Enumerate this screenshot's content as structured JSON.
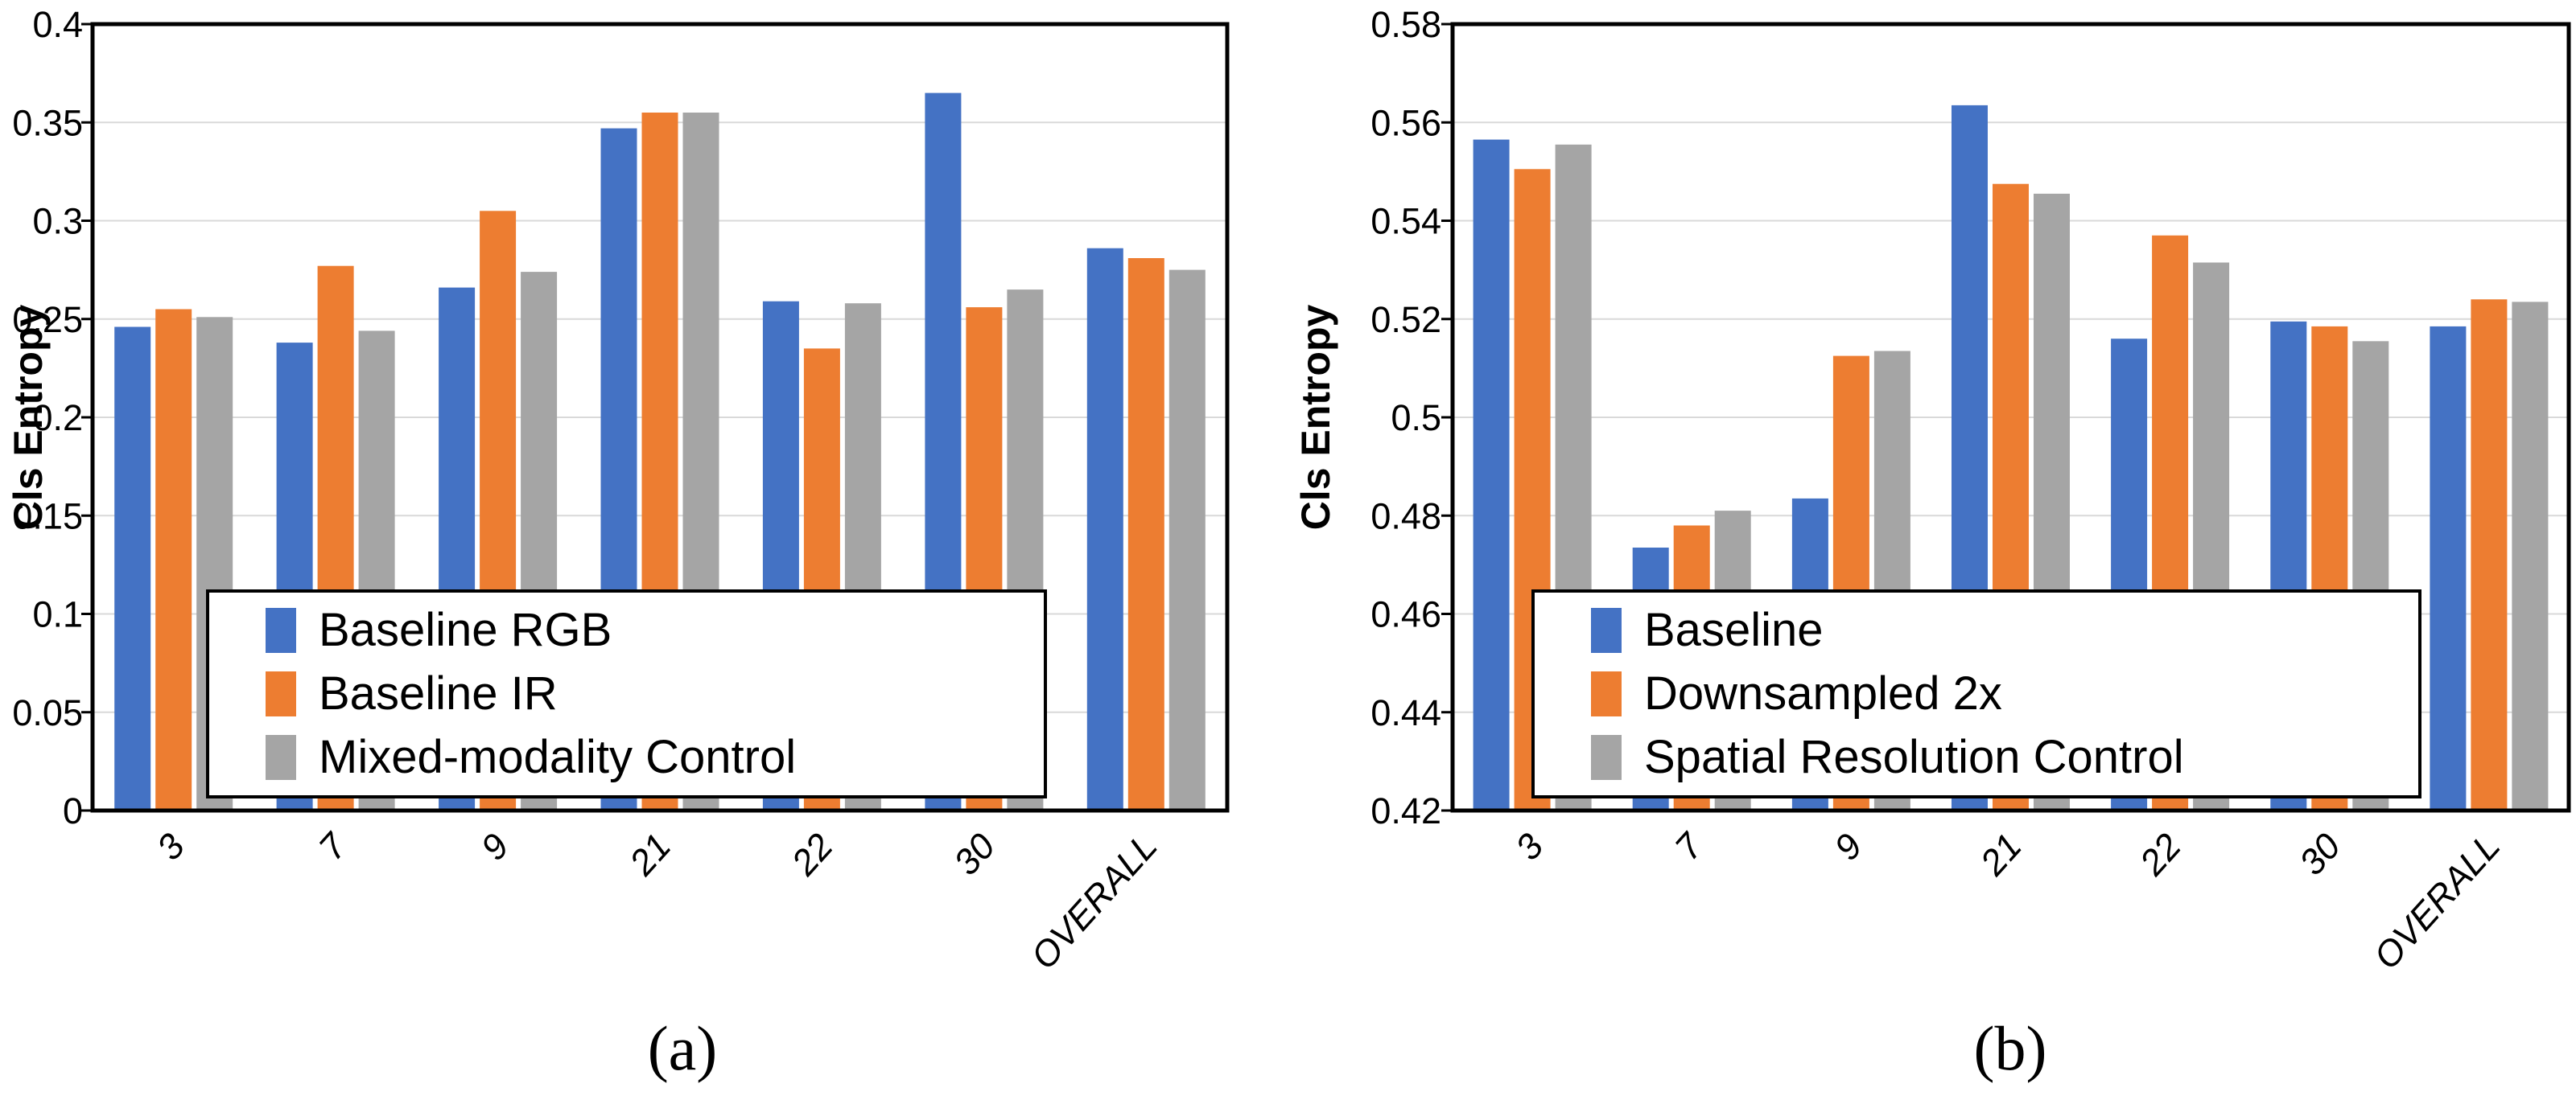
{
  "page": {
    "background": "#ffffff"
  },
  "colors": {
    "series_blue": "#4472C4",
    "series_orange": "#ED7D31",
    "series_gray": "#A5A5A5",
    "gridline": "#D9D9D9",
    "axis": "#000000",
    "text": "#000000"
  },
  "chart_data": [
    {
      "id": "a",
      "type": "bar",
      "caption": "(a)",
      "ylabel": "Cls Entropy",
      "xlabel": "",
      "categories": [
        "3",
        "7",
        "9",
        "21",
        "22",
        "30",
        "OVERALL"
      ],
      "ylim": [
        0,
        0.4
      ],
      "ytick_step": 0.05,
      "ytick_labels": [
        "0",
        "0.05",
        "0.1",
        "0.15",
        "0.2",
        "0.25",
        "0.3",
        "0.35",
        "0.4"
      ],
      "grid": true,
      "legend_position": "overlay-bottom-left",
      "series": [
        {
          "name": "Baseline RGB",
          "color_key": "series_blue",
          "values": [
            0.246,
            0.238,
            0.266,
            0.347,
            0.259,
            0.365,
            0.286
          ]
        },
        {
          "name": "Baseline IR",
          "color_key": "series_orange",
          "values": [
            0.255,
            0.277,
            0.305,
            0.355,
            0.235,
            0.256,
            0.281
          ]
        },
        {
          "name": "Mixed-modality Control",
          "color_key": "series_gray",
          "values": [
            0.251,
            0.244,
            0.274,
            0.355,
            0.258,
            0.265,
            0.275
          ]
        }
      ]
    },
    {
      "id": "b",
      "type": "bar",
      "caption": "(b)",
      "ylabel": "Cls Entropy",
      "xlabel": "",
      "categories": [
        "3",
        "7",
        "9",
        "21",
        "22",
        "30",
        "OVERALL"
      ],
      "ylim": [
        0.42,
        0.58
      ],
      "ytick_step": 0.02,
      "ytick_labels": [
        "0.42",
        "0.44",
        "0.46",
        "0.48",
        "0.5",
        "0.52",
        "0.54",
        "0.56",
        "0.58"
      ],
      "grid": true,
      "legend_position": "overlay-bottom-left",
      "series": [
        {
          "name": "Baseline",
          "color_key": "series_blue",
          "values": [
            0.5565,
            0.4735,
            0.4835,
            0.5635,
            0.516,
            0.5195,
            0.5185
          ]
        },
        {
          "name": "Downsampled 2x",
          "color_key": "series_orange",
          "values": [
            0.5505,
            0.478,
            0.5125,
            0.5475,
            0.537,
            0.5185,
            0.524
          ]
        },
        {
          "name": "Spatial Resolution Control",
          "color_key": "series_gray",
          "values": [
            0.5555,
            0.481,
            0.5135,
            0.5455,
            0.5315,
            0.5155,
            0.5235
          ]
        }
      ]
    }
  ]
}
